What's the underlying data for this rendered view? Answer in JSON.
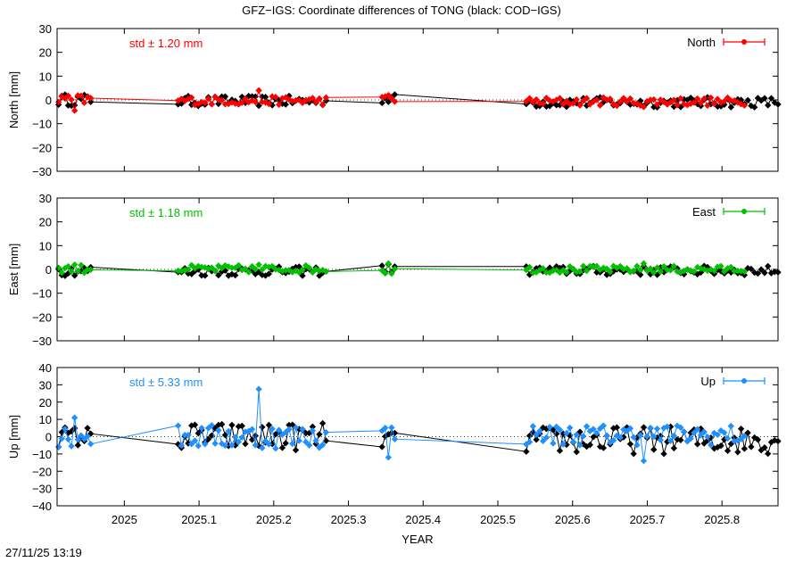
{
  "figure": {
    "title": "GFZ−IGS: Coordinate differences of TONG (black: COD−IGS)",
    "timestamp": "27/11/25 13:19"
  },
  "chart_data": [
    {
      "type": "line",
      "name": "north-panel",
      "ylabel": "North [mm]",
      "xlabel": "",
      "ylim": [
        -30,
        30
      ],
      "yticks": [
        30,
        20,
        10,
        0,
        -10,
        -20,
        -30
      ],
      "xlim": [
        2024.91,
        2025.875
      ],
      "grid": false,
      "legend": "top-right",
      "legend_label": "North",
      "std_label": "std ± 1.20 mm",
      "color": "#ff0000",
      "reference_color": "#000000",
      "series_segments": [
        {
          "t0": 2024.912,
          "t1": 2024.955,
          "mean": 0.0,
          "amp": 2.2,
          "spike": -4.5
        },
        {
          "t0": 2025.072,
          "t1": 2025.27,
          "mean": -0.3,
          "amp": 1.8,
          "spike": 4.0
        },
        {
          "t0": 2025.345,
          "t1": 2025.362,
          "mean": 0.3,
          "amp": 1.5,
          "spike": 2.0
        },
        {
          "t0": 2025.538,
          "t1": 2025.83,
          "mean": -0.7,
          "amp": 1.8,
          "spike": -3.0
        }
      ],
      "ref_segments": [
        {
          "t0": 2024.912,
          "t1": 2024.955,
          "mean": 0.0,
          "amp": 2.5
        },
        {
          "t0": 2025.072,
          "t1": 2025.27,
          "mean": -0.5,
          "amp": 2.2
        },
        {
          "t0": 2025.345,
          "t1": 2025.362,
          "mean": 0.5,
          "amp": 2.0
        },
        {
          "t0": 2025.538,
          "t1": 2025.875,
          "mean": -1.0,
          "amp": 2.2
        }
      ]
    },
    {
      "type": "line",
      "name": "east-panel",
      "ylabel": "East [mm]",
      "xlabel": "",
      "ylim": [
        -30,
        30
      ],
      "yticks": [
        30,
        20,
        10,
        0,
        -10,
        -20,
        -30
      ],
      "xlim": [
        2024.91,
        2025.875
      ],
      "grid": false,
      "legend": "top-right",
      "legend_label": "East",
      "std_label": "std ± 1.18 mm",
      "color": "#00c000",
      "reference_color": "#000000",
      "series_segments": [
        {
          "t0": 2024.912,
          "t1": 2024.955,
          "mean": 0.3,
          "amp": 1.8,
          "spike": 2.0
        },
        {
          "t0": 2025.072,
          "t1": 2025.27,
          "mean": 0.2,
          "amp": 1.6,
          "spike": 2.0
        },
        {
          "t0": 2025.345,
          "t1": 2025.362,
          "mean": -0.5,
          "amp": 1.5,
          "spike": 2.5
        },
        {
          "t0": 2025.538,
          "t1": 2025.83,
          "mean": 0.0,
          "amp": 1.5,
          "spike": 2.5
        }
      ],
      "ref_segments": [
        {
          "t0": 2024.912,
          "t1": 2024.955,
          "mean": -0.5,
          "amp": 2.2
        },
        {
          "t0": 2025.072,
          "t1": 2025.27,
          "mean": -0.8,
          "amp": 2.0
        },
        {
          "t0": 2025.345,
          "t1": 2025.362,
          "mean": 0.5,
          "amp": 2.0
        },
        {
          "t0": 2025.538,
          "t1": 2025.875,
          "mean": -0.5,
          "amp": 2.0
        }
      ]
    },
    {
      "type": "line",
      "name": "up-panel",
      "ylabel": "Up [mm]",
      "xlabel": "YEAR",
      "ylim": [
        -40,
        40
      ],
      "yticks": [
        40,
        30,
        20,
        10,
        0,
        -10,
        -20,
        -30,
        -40
      ],
      "xlim": [
        2024.91,
        2025.875
      ],
      "xticks": [
        2025,
        2025.1,
        2025.2,
        2025.3,
        2025.4,
        2025.5,
        2025.6,
        2025.7,
        2025.8
      ],
      "xticklabels": [
        "2025",
        "2025.1",
        "2025.2",
        "2025.3",
        "2025.4",
        "2025.5",
        "2025.6",
        "2025.7",
        "2025.8"
      ],
      "grid": false,
      "legend": "top-right",
      "legend_label": "Up",
      "std_label": "std ± 5.33 mm",
      "color": "#1e90ff",
      "reference_color": "#000000",
      "series_segments": [
        {
          "t0": 2024.912,
          "t1": 2024.955,
          "mean": 0.5,
          "amp": 7.0,
          "spike": 11.0
        },
        {
          "t0": 2025.072,
          "t1": 2025.27,
          "mean": 0.0,
          "amp": 7.0,
          "spike": 27.5
        },
        {
          "t0": 2025.345,
          "t1": 2025.362,
          "mean": 0.0,
          "amp": 8.0,
          "spike": -12.0
        },
        {
          "t0": 2025.538,
          "t1": 2025.83,
          "mean": 1.0,
          "amp": 6.0,
          "spike": -14.0
        }
      ],
      "ref_segments": [
        {
          "t0": 2024.912,
          "t1": 2024.955,
          "mean": 0.0,
          "amp": 6.0
        },
        {
          "t0": 2025.072,
          "t1": 2025.27,
          "mean": 0.0,
          "amp": 8.0
        },
        {
          "t0": 2025.345,
          "t1": 2025.362,
          "mean": -2.0,
          "amp": 5.0
        },
        {
          "t0": 2025.538,
          "t1": 2025.875,
          "mean": -2.0,
          "amp": 8.0
        }
      ]
    }
  ]
}
